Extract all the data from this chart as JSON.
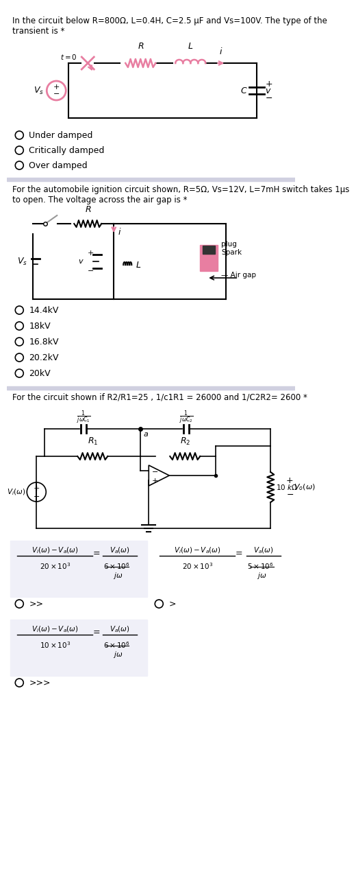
{
  "bg_color": "#ffffff",
  "section_divider_color": "#d0d0e0",
  "question1_text": "In the circuit below R=800Ω, L=0.4H, C=2.5 μF and Vs=100V. The type of the\ntransient is *",
  "question1_options": [
    "Under damped",
    "Critically damped",
    "Over damped"
  ],
  "question2_text": "For the automobile ignition circuit shown, R=5Ω, Vs=12V, L=7mH switch takes 1μs\nto open. The voltage across the air gap is *",
  "question2_options": [
    "14.4kV",
    "18kV",
    "16.8kV",
    "20.2kV",
    "20kV"
  ],
  "question3_text": "For the circuit shown if R2/R1=25 , 1/c1R1 = 26000 and 1/C2R2= 2600 *",
  "pink_color": "#e87ea1",
  "dark_pink": "#c85070",
  "wire_color": "#000000",
  "text_color": "#000000"
}
